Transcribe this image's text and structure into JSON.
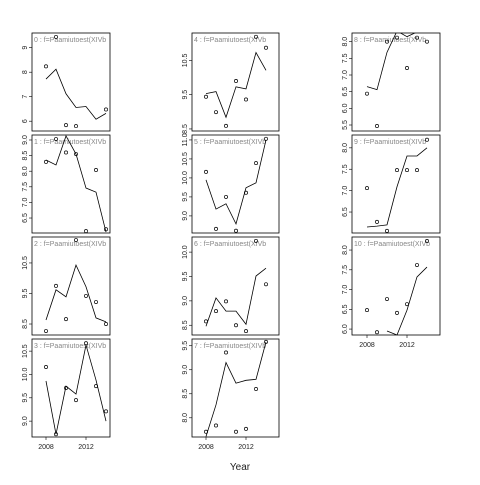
{
  "x_label": "Year",
  "chart_data": [
    {
      "type": "line",
      "title": "0 : f=Paamiutoest(XIVb",
      "x": [
        2008,
        2009,
        2010,
        2011,
        2012,
        2013,
        2014
      ],
      "xlim": [
        2006.6,
        2014.4
      ],
      "ylim": [
        5.6,
        9.6
      ],
      "yticks": [
        6,
        7,
        8,
        9
      ],
      "series": [
        {
          "type": "scatter",
          "values": [
            8.24,
            9.44,
            5.84,
            5.8,
            null,
            null,
            6.48
          ]
        },
        {
          "type": "line",
          "values": [
            7.72,
            8.12,
            7.12,
            6.56,
            6.6,
            6.08,
            6.32
          ]
        }
      ]
    },
    {
      "type": "line",
      "title": "1 : f=Paamiutoest(XIVb",
      "x": [
        2008,
        2009,
        2010,
        2011,
        2012,
        2013,
        2014
      ],
      "xlim": [
        2006.6,
        2014.4
      ],
      "ylim": [
        6.02,
        9.16
      ],
      "yticks": [
        6.5,
        {
          "value": 7,
          "label": "7.0"
        },
        7.5,
        {
          "value": 8,
          "label": "8.0"
        },
        8.5,
        {
          "value": 9,
          "label": "9.0"
        }
      ],
      "series": [
        {
          "type": "scatter",
          "values": [
            8.3,
            9.03,
            8.6,
            8.55,
            6.08,
            8.04,
            6.14
          ]
        },
        {
          "type": "line",
          "values": [
            8.36,
            8.2,
            9.13,
            8.55,
            7.46,
            7.33,
            6.05
          ]
        }
      ]
    },
    {
      "type": "line",
      "title": "2 : f=Paamiutoest(XIVb",
      "x": [
        2008,
        2009,
        2010,
        2011,
        2012,
        2013,
        2014
      ],
      "xlim": [
        2006.6,
        2014.4
      ],
      "ylim": [
        8.14,
        11.35
      ],
      "yticks": [
        8.5,
        9.5,
        10.5
      ],
      "series": [
        {
          "type": "scatter",
          "values": [
            8.27,
            9.75,
            8.66,
            11.25,
            9.42,
            9.22,
            8.5
          ]
        },
        {
          "type": "line",
          "values": [
            8.63,
            9.62,
            9.39,
            10.43,
            9.72,
            8.7,
            8.57
          ]
        }
      ]
    },
    {
      "type": "line",
      "title": "3 : f=Paamiutoest(XIVb",
      "x": [
        2008,
        2009,
        2010,
        2011,
        2012,
        2013,
        2014
      ],
      "xlim": [
        2006.6,
        2014.4
      ],
      "ylim": [
        8.66,
        10.76
      ],
      "yticks": [
        {
          "value": 9,
          "label": "9.0"
        },
        9.5,
        {
          "value": 10,
          "label": "10.0"
        },
        10.5
      ],
      "xticks": [
        2008,
        2012
      ],
      "series": [
        {
          "type": "scatter",
          "values": [
            10.16,
            8.72,
            9.71,
            9.45,
            10.67,
            9.75,
            9.21
          ]
        },
        {
          "type": "line",
          "values": [
            9.86,
            8.72,
            9.75,
            9.58,
            10.63,
            9.88,
            9.0
          ]
        }
      ]
    },
    {
      "type": "line",
      "title": "4 : f=Paamiutoest(XIVb",
      "x": [
        2008,
        2009,
        2010,
        2011,
        2012,
        2013,
        2014
      ],
      "xlim": [
        2006.6,
        2015.3
      ],
      "ylim": [
        8.44,
        11.3
      ],
      "yticks": [
        8.5,
        9.5,
        10.5
      ],
      "series": [
        {
          "type": "scatter",
          "values": [
            9.44,
            8.99,
            8.59,
            9.9,
            9.36,
            11.19,
            10.87
          ]
        },
        {
          "type": "line",
          "values": [
            9.53,
            9.59,
            8.84,
            9.73,
            9.67,
            10.73,
            10.21
          ]
        }
      ]
    },
    {
      "type": "line",
      "title": "5 : f=Paamiutoest(XIVb",
      "x": [
        2008,
        2009,
        2010,
        2011,
        2012,
        2013,
        2014
      ],
      "xlim": [
        2006.6,
        2015.3
      ],
      "ylim": [
        8.55,
        11.13
      ],
      "yticks": [
        {
          "value": 9,
          "label": "9.0"
        },
        9.5,
        {
          "value": 10,
          "label": "10.0"
        },
        10.5,
        {
          "value": 11,
          "label": "11.0"
        }
      ],
      "series": [
        {
          "type": "scatter",
          "values": [
            10.16,
            8.66,
            9.5,
            8.61,
            9.61,
            10.39,
            11.03
          ]
        },
        {
          "type": "line",
          "values": [
            9.95,
            9.18,
            9.32,
            8.79,
            9.74,
            9.87,
            11.0
          ]
        }
      ]
    },
    {
      "type": "line",
      "title": "6 : f=Paamiutoest(XIVb",
      "x": [
        2008,
        2009,
        2010,
        2011,
        2012,
        2013,
        2014
      ],
      "xlim": [
        2006.6,
        2015.3
      ],
      "ylim": [
        8.3,
        10.31
      ],
      "yticks": [
        8.5,
        {
          "value": 9,
          "label": "9.0"
        },
        9.5,
        {
          "value": 10,
          "label": "10.0"
        }
      ],
      "series": [
        {
          "type": "scatter",
          "values": [
            8.58,
            8.79,
            8.99,
            8.5,
            8.38,
            10.23,
            9.34
          ]
        },
        {
          "type": "line",
          "values": [
            8.48,
            9.06,
            8.79,
            8.79,
            8.52,
            9.51,
            9.67
          ]
        }
      ]
    },
    {
      "type": "line",
      "title": "7 : f=Paamiutoest(XIVb",
      "x": [
        2008,
        2009,
        2010,
        2011,
        2012,
        2013,
        2014
      ],
      "xlim": [
        2006.6,
        2015.3
      ],
      "ylim": [
        7.6,
        9.64
      ],
      "yticks": [
        {
          "value": 8,
          "label": "8.0"
        },
        8.5,
        {
          "value": 9,
          "label": "9.0"
        },
        9.5
      ],
      "xticks": [
        2008,
        2012
      ],
      "series": [
        {
          "type": "scatter",
          "values": [
            7.71,
            7.84,
            9.36,
            7.71,
            7.77,
            8.6,
            9.58
          ]
        },
        {
          "type": "line",
          "values": [
            7.61,
            8.27,
            9.15,
            8.72,
            8.78,
            8.8,
            9.58
          ]
        }
      ]
    },
    {
      "type": "line",
      "title": "8 : f=Paamiutoest(XIVb",
      "x": [
        2008,
        2009,
        2010,
        2011,
        2012,
        2013,
        2014
      ],
      "xlim": [
        2006.5,
        2015.3
      ],
      "ylim": [
        5.32,
        8.26
      ],
      "yticks": [
        5.5,
        {
          "value": 6,
          "label": "6.0"
        },
        6.5,
        {
          "value": 7,
          "label": "7.0"
        },
        7.5,
        {
          "value": 8,
          "label": "8.0"
        }
      ],
      "series": [
        {
          "type": "scatter",
          "values": [
            6.44,
            5.47,
            8.0,
            8.12,
            7.21,
            8.12,
            8.0
          ]
        },
        {
          "type": "line",
          "values": [
            6.65,
            6.56,
            7.68,
            8.32,
            8.15,
            8.29,
            8.3
          ]
        }
      ]
    },
    {
      "type": "line",
      "title": "9 : f=Paamiutoest(XIVb",
      "x": [
        2008,
        2009,
        2010,
        2011,
        2012,
        2013,
        2014
      ],
      "xlim": [
        2006.5,
        2015.3
      ],
      "ylim": [
        6.01,
        8.3
      ],
      "yticks": [
        6.5,
        {
          "value": 7,
          "label": "7.0"
        },
        7.5,
        {
          "value": 8,
          "label": "8.0"
        }
      ],
      "series": [
        {
          "type": "scatter",
          "values": [
            7.06,
            6.27,
            6.06,
            7.48,
            7.48,
            7.48,
            8.19
          ]
        },
        {
          "type": "line",
          "values": [
            6.15,
            6.17,
            6.2,
            7.09,
            7.81,
            7.81,
            8.0
          ]
        }
      ]
    },
    {
      "type": "line",
      "title": "10 : f=Paamiutoest(XIVb",
      "x": [
        2008,
        2009,
        2010,
        2011,
        2012,
        2013,
        2014
      ],
      "xlim": [
        2006.5,
        2015.3
      ],
      "ylim": [
        5.85,
        8.33
      ],
      "yticks": [
        {
          "value": 6,
          "label": "6.0"
        },
        6.5,
        {
          "value": 7,
          "label": "7.0"
        },
        7.5,
        {
          "value": 8,
          "label": "8.0"
        }
      ],
      "xticks": [
        2008,
        2012
      ],
      "series": [
        {
          "type": "scatter",
          "values": [
            6.48,
            5.92,
            6.76,
            6.41,
            6.63,
            7.62,
            8.23
          ]
        },
        {
          "type": "line",
          "values": [
            null,
            null,
            5.95,
            5.85,
            6.48,
            7.32,
            7.57
          ]
        }
      ]
    }
  ]
}
